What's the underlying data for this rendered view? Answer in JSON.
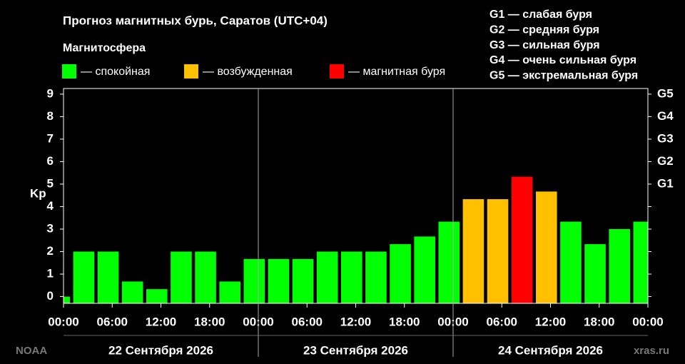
{
  "chart_data": {
    "type": "bar",
    "title": "Прогноз магнитных бурь, Саратов (UTC+04)",
    "legend_title": "Магнитосфера",
    "legend": [
      {
        "name": "— спокойная",
        "color": "#00ff00"
      },
      {
        "name": "— возбужденная",
        "color": "#ffc000"
      },
      {
        "name": "— магнитная буря",
        "color": "#ff0000"
      }
    ],
    "storm_scale": [
      "G1 — слабая буря",
      "G2 — средняя буря",
      "G3 — сильная буря",
      "G4 — очень сильная буря",
      "G5 — экстремальная буря"
    ],
    "y_label": "Kp",
    "x": [
      -0.5,
      2.5,
      5.5,
      8.5,
      11.5,
      14.5,
      17.5,
      20.5,
      23.5,
      26.5,
      29.5,
      32.5,
      35.5,
      38.5,
      41.5,
      44.5,
      47.5,
      50.5,
      53.5,
      56.5,
      59.5,
      62.5,
      65.5,
      68.5,
      71.5
    ],
    "values": [
      0,
      2,
      2,
      0.67,
      0.33,
      2,
      2,
      0.67,
      1.67,
      1.67,
      1.67,
      2,
      2,
      2,
      2.33,
      2.67,
      3.33,
      4.33,
      4.33,
      5.33,
      4.67,
      3.33,
      2.33,
      3,
      3.33
    ],
    "colors": [
      "#00ff00",
      "#00ff00",
      "#00ff00",
      "#00ff00",
      "#00ff00",
      "#00ff00",
      "#00ff00",
      "#00ff00",
      "#00ff00",
      "#00ff00",
      "#00ff00",
      "#00ff00",
      "#00ff00",
      "#00ff00",
      "#00ff00",
      "#00ff00",
      "#00ff00",
      "#ffc000",
      "#ffc000",
      "#ff0000",
      "#ffc000",
      "#00ff00",
      "#00ff00",
      "#00ff00",
      "#00ff00"
    ],
    "xlim": [
      0,
      72
    ],
    "xticks": [
      {
        "value": 0,
        "label": "00:00"
      },
      {
        "value": 6,
        "label": "06:00"
      },
      {
        "value": 12,
        "label": "12:00"
      },
      {
        "value": 18,
        "label": "18:00"
      },
      {
        "value": 24,
        "label": "00:00"
      },
      {
        "value": 30,
        "label": "06:00"
      },
      {
        "value": 36,
        "label": "12:00"
      },
      {
        "value": 42,
        "label": "18:00"
      },
      {
        "value": 48,
        "label": "00:00"
      },
      {
        "value": 54,
        "label": "06:00"
      },
      {
        "value": 60,
        "label": "12:00"
      },
      {
        "value": 66,
        "label": "18:00"
      },
      {
        "value": 72,
        "label": "00:00"
      }
    ],
    "days": [
      {
        "value": 12,
        "label": "22 Сентября 2026"
      },
      {
        "value": 36,
        "label": "23 Сентября 2026"
      },
      {
        "value": 60,
        "label": "24 Сентября 2026"
      }
    ],
    "ylim": [
      -0.3,
      9.25
    ],
    "yticks": [
      0,
      1,
      2,
      3,
      4,
      5,
      6,
      7,
      8,
      9
    ],
    "y2ticks": [
      {
        "value": 5,
        "label": "G1"
      },
      {
        "value": 6,
        "label": "G2"
      },
      {
        "value": 7,
        "label": "G3"
      },
      {
        "value": 8,
        "label": "G4"
      },
      {
        "value": 9,
        "label": "G5"
      }
    ],
    "source_left": "NOAA",
    "source_right": "xras.ru"
  }
}
